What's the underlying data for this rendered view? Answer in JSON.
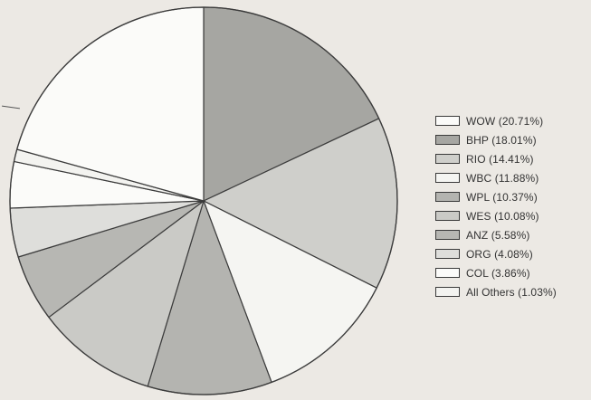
{
  "chart_data": {
    "type": "pie",
    "title": "",
    "legend_position": "right",
    "start_angle_deg": -90,
    "direction": "clockwise",
    "slice_order": [
      "BHP",
      "RIO",
      "WBC",
      "WPL",
      "WES",
      "ANZ",
      "ORG",
      "COL",
      "All Others",
      "WOW"
    ],
    "slices": [
      {
        "name": "WOW",
        "label": "WOW (20.71%)",
        "value": 20.71,
        "color": "#fbfbf9"
      },
      {
        "name": "BHP",
        "label": "BHP (18.01%)",
        "value": 18.01,
        "color": "#a6a6a2"
      },
      {
        "name": "RIO",
        "label": "RIO (14.41%)",
        "value": 14.41,
        "color": "#cfcfcb"
      },
      {
        "name": "WBC",
        "label": "WBC (11.88%)",
        "value": 11.88,
        "color": "#f5f5f2"
      },
      {
        "name": "WPL",
        "label": "WPL (10.37%)",
        "value": 10.37,
        "color": "#b4b4b0"
      },
      {
        "name": "WES",
        "label": "WES (10.08%)",
        "value": 10.08,
        "color": "#cacac6"
      },
      {
        "name": "ANZ",
        "label": "ANZ (5.58%)",
        "value": 5.58,
        "color": "#b7b7b3"
      },
      {
        "name": "ORG",
        "label": "ORG (4.08%)",
        "value": 4.08,
        "color": "#dededb"
      },
      {
        "name": "COL",
        "label": "COL (3.86%)",
        "value": 3.86,
        "color": "#fbfbf9"
      },
      {
        "name": "All Others",
        "label": "All Others (1.03%)",
        "value": 1.03,
        "color": "#f3f3f0"
      }
    ]
  }
}
